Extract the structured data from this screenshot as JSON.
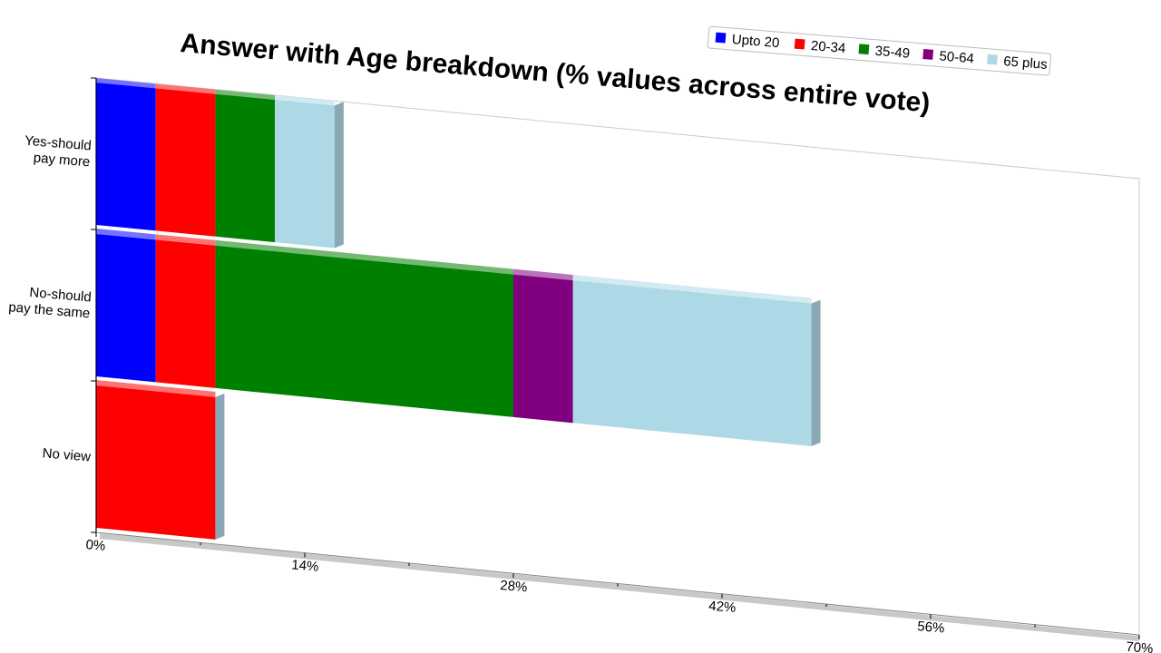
{
  "chart_data": {
    "type": "bar",
    "orientation": "horizontal",
    "stacked": true,
    "perspective_3d": true,
    "title": "Answer with Age breakdown (% values across entire vote)",
    "categories": [
      "Yes-should pay more",
      "No-should pay the same",
      "No view"
    ],
    "category_label_lines": [
      [
        "Yes-should",
        "pay more"
      ],
      [
        "No-should",
        "pay the same"
      ],
      [
        "No view"
      ]
    ],
    "series": [
      {
        "name": "Upto 20",
        "color": "#0000ff",
        "values": [
          4,
          4,
          0
        ]
      },
      {
        "name": "20-34",
        "color": "#ff0000",
        "values": [
          4,
          4,
          8
        ]
      },
      {
        "name": "35-49",
        "color": "#008000",
        "values": [
          4,
          20,
          0
        ]
      },
      {
        "name": "50-64",
        "color": "#800080",
        "values": [
          0,
          4,
          0
        ]
      },
      {
        "name": "65 plus",
        "color": "#add8e6",
        "values": [
          4,
          16,
          0
        ]
      }
    ],
    "xlim": [
      0,
      70
    ],
    "x_ticks": [
      0,
      14,
      28,
      42,
      56,
      70
    ],
    "x_tick_labels": [
      "0%",
      "14%",
      "28%",
      "42%",
      "56%",
      "70%"
    ],
    "legend": "top-right",
    "grid": false
  }
}
